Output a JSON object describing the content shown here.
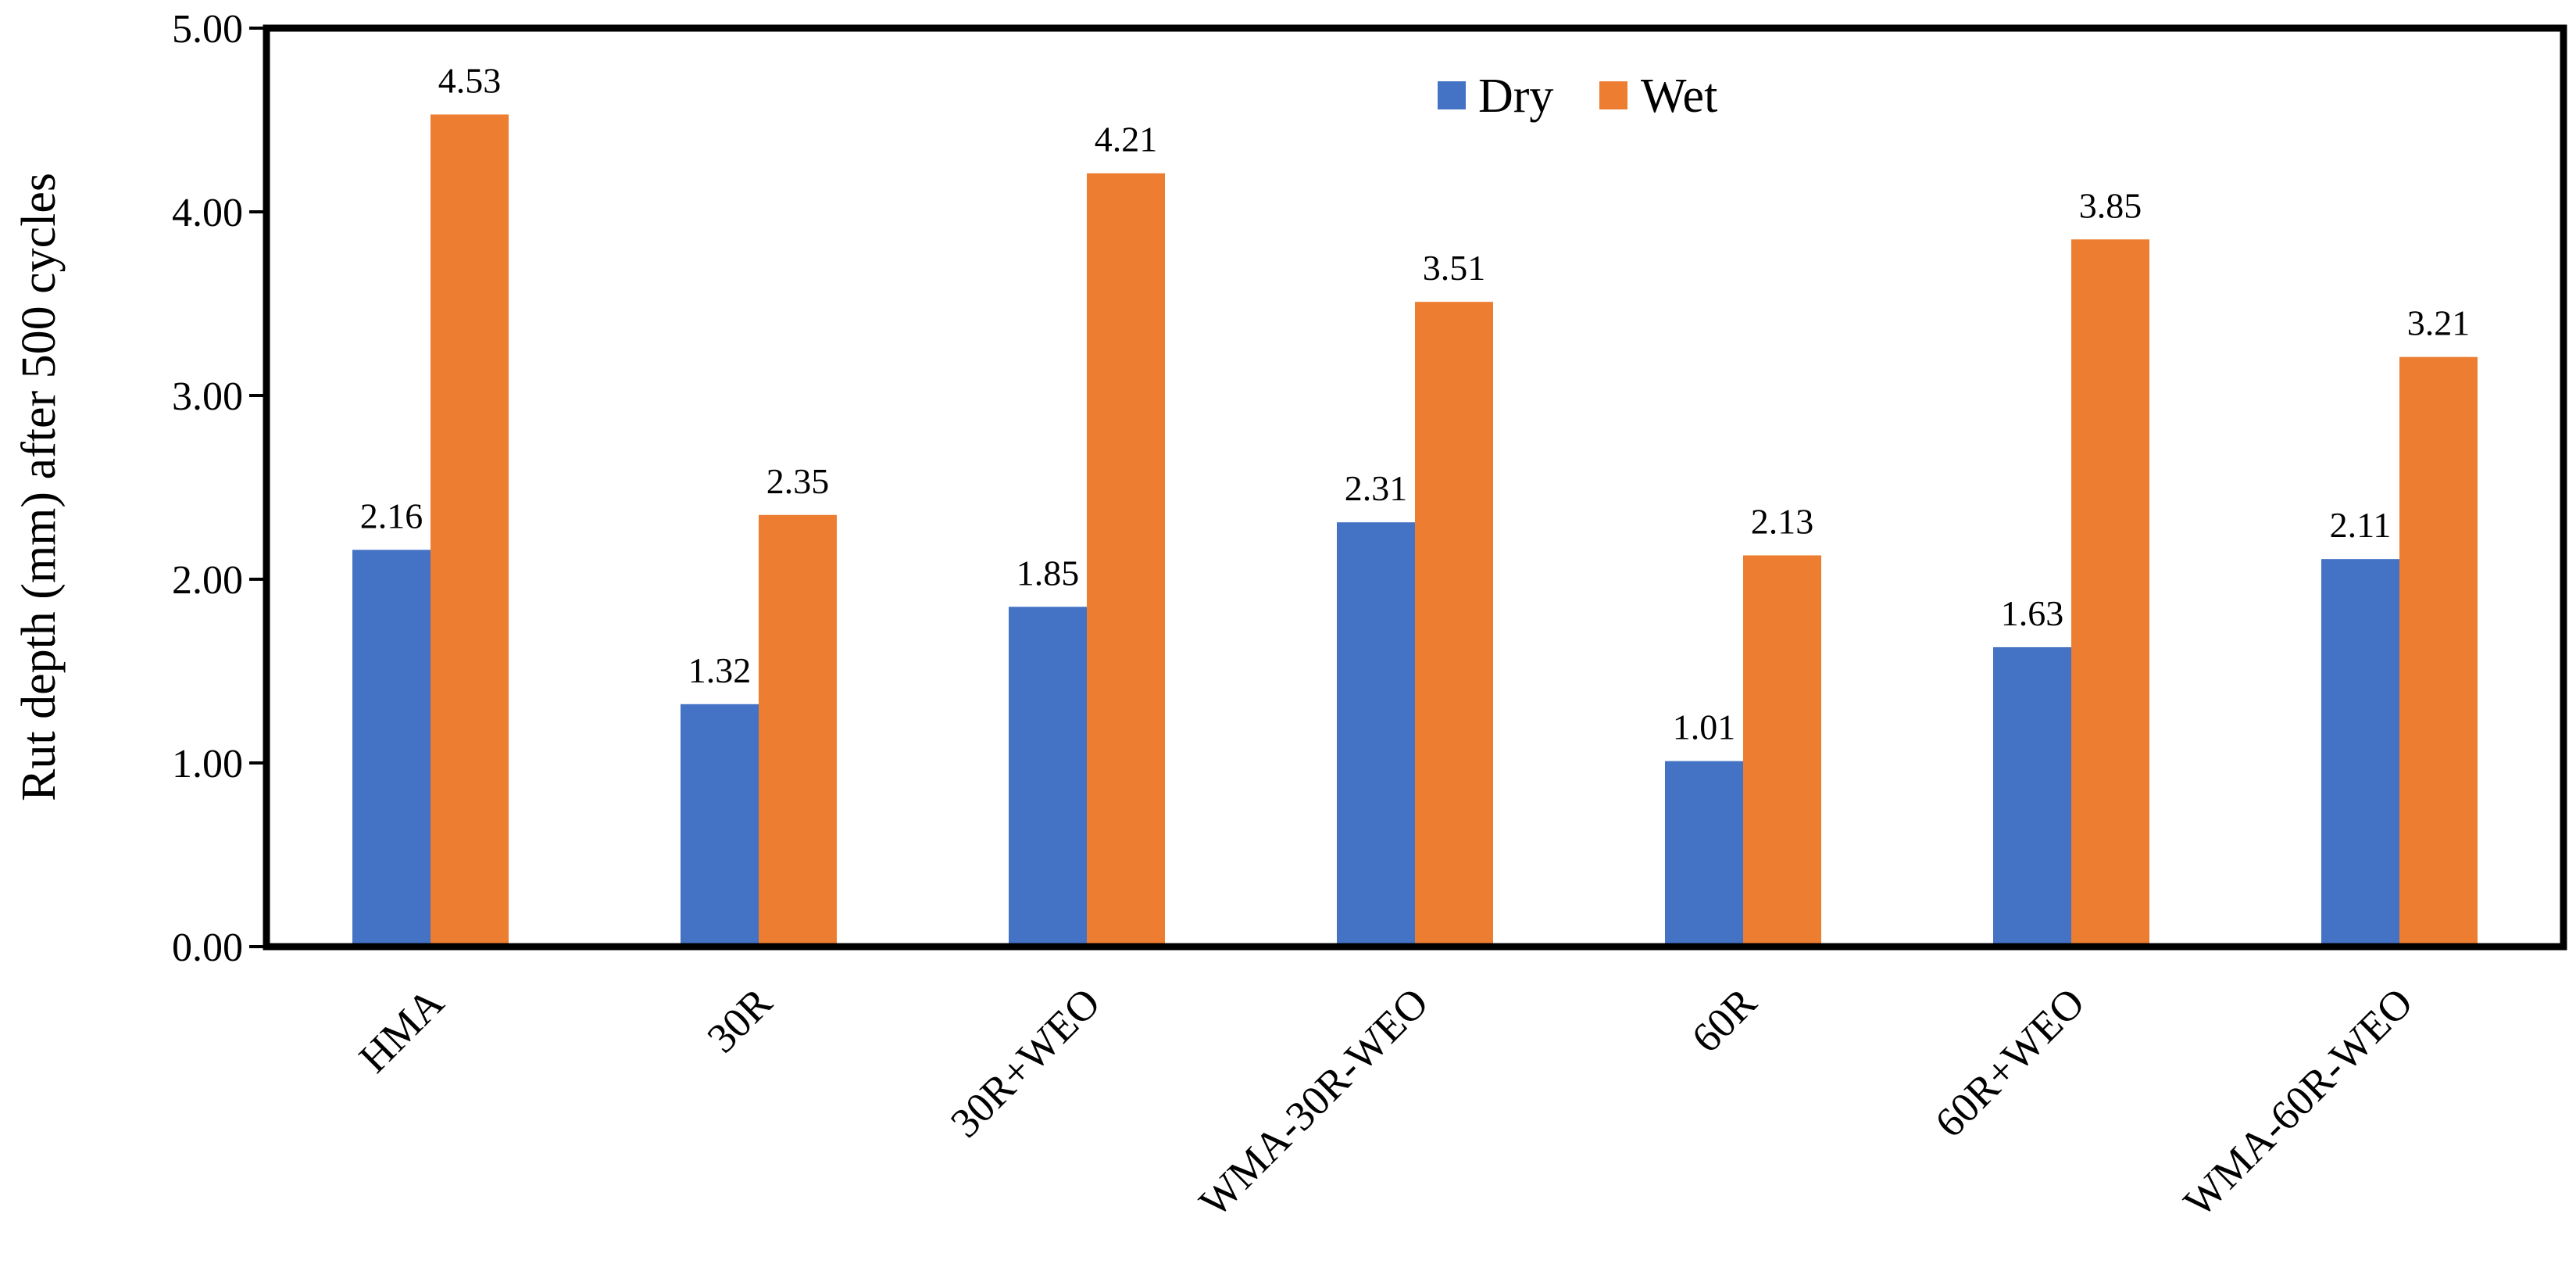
{
  "chart_data": {
    "type": "bar",
    "title": "",
    "xlabel": "",
    "ylabel": "Rut depth  (mm) after 500 cycles",
    "ylim": [
      0,
      5
    ],
    "yticks": [
      "0.00",
      "1.00",
      "2.00",
      "3.00",
      "4.00",
      "5.00"
    ],
    "categories": [
      "HMA",
      "30R",
      "30R+WEO",
      "WMA-30R-WEO",
      "60R",
      "60R+WEO",
      "WMA-60R-WEO"
    ],
    "series": [
      {
        "name": "Dry",
        "color": "#4472C4",
        "values": [
          2.16,
          1.32,
          1.85,
          2.31,
          1.01,
          1.63,
          2.11
        ],
        "labels": [
          "2.16",
          "1.32",
          "1.85",
          "2.31",
          "1.01",
          "1.63",
          "2.11"
        ]
      },
      {
        "name": "Wet",
        "color": "#ED7D31",
        "values": [
          4.53,
          2.35,
          4.21,
          3.51,
          2.13,
          3.85,
          3.21
        ],
        "labels": [
          "4.53",
          "2.35",
          "4.21",
          "3.51",
          "2.13",
          "3.85",
          "3.21"
        ]
      }
    ],
    "legend": {
      "position": "top-center"
    },
    "grid": false
  }
}
